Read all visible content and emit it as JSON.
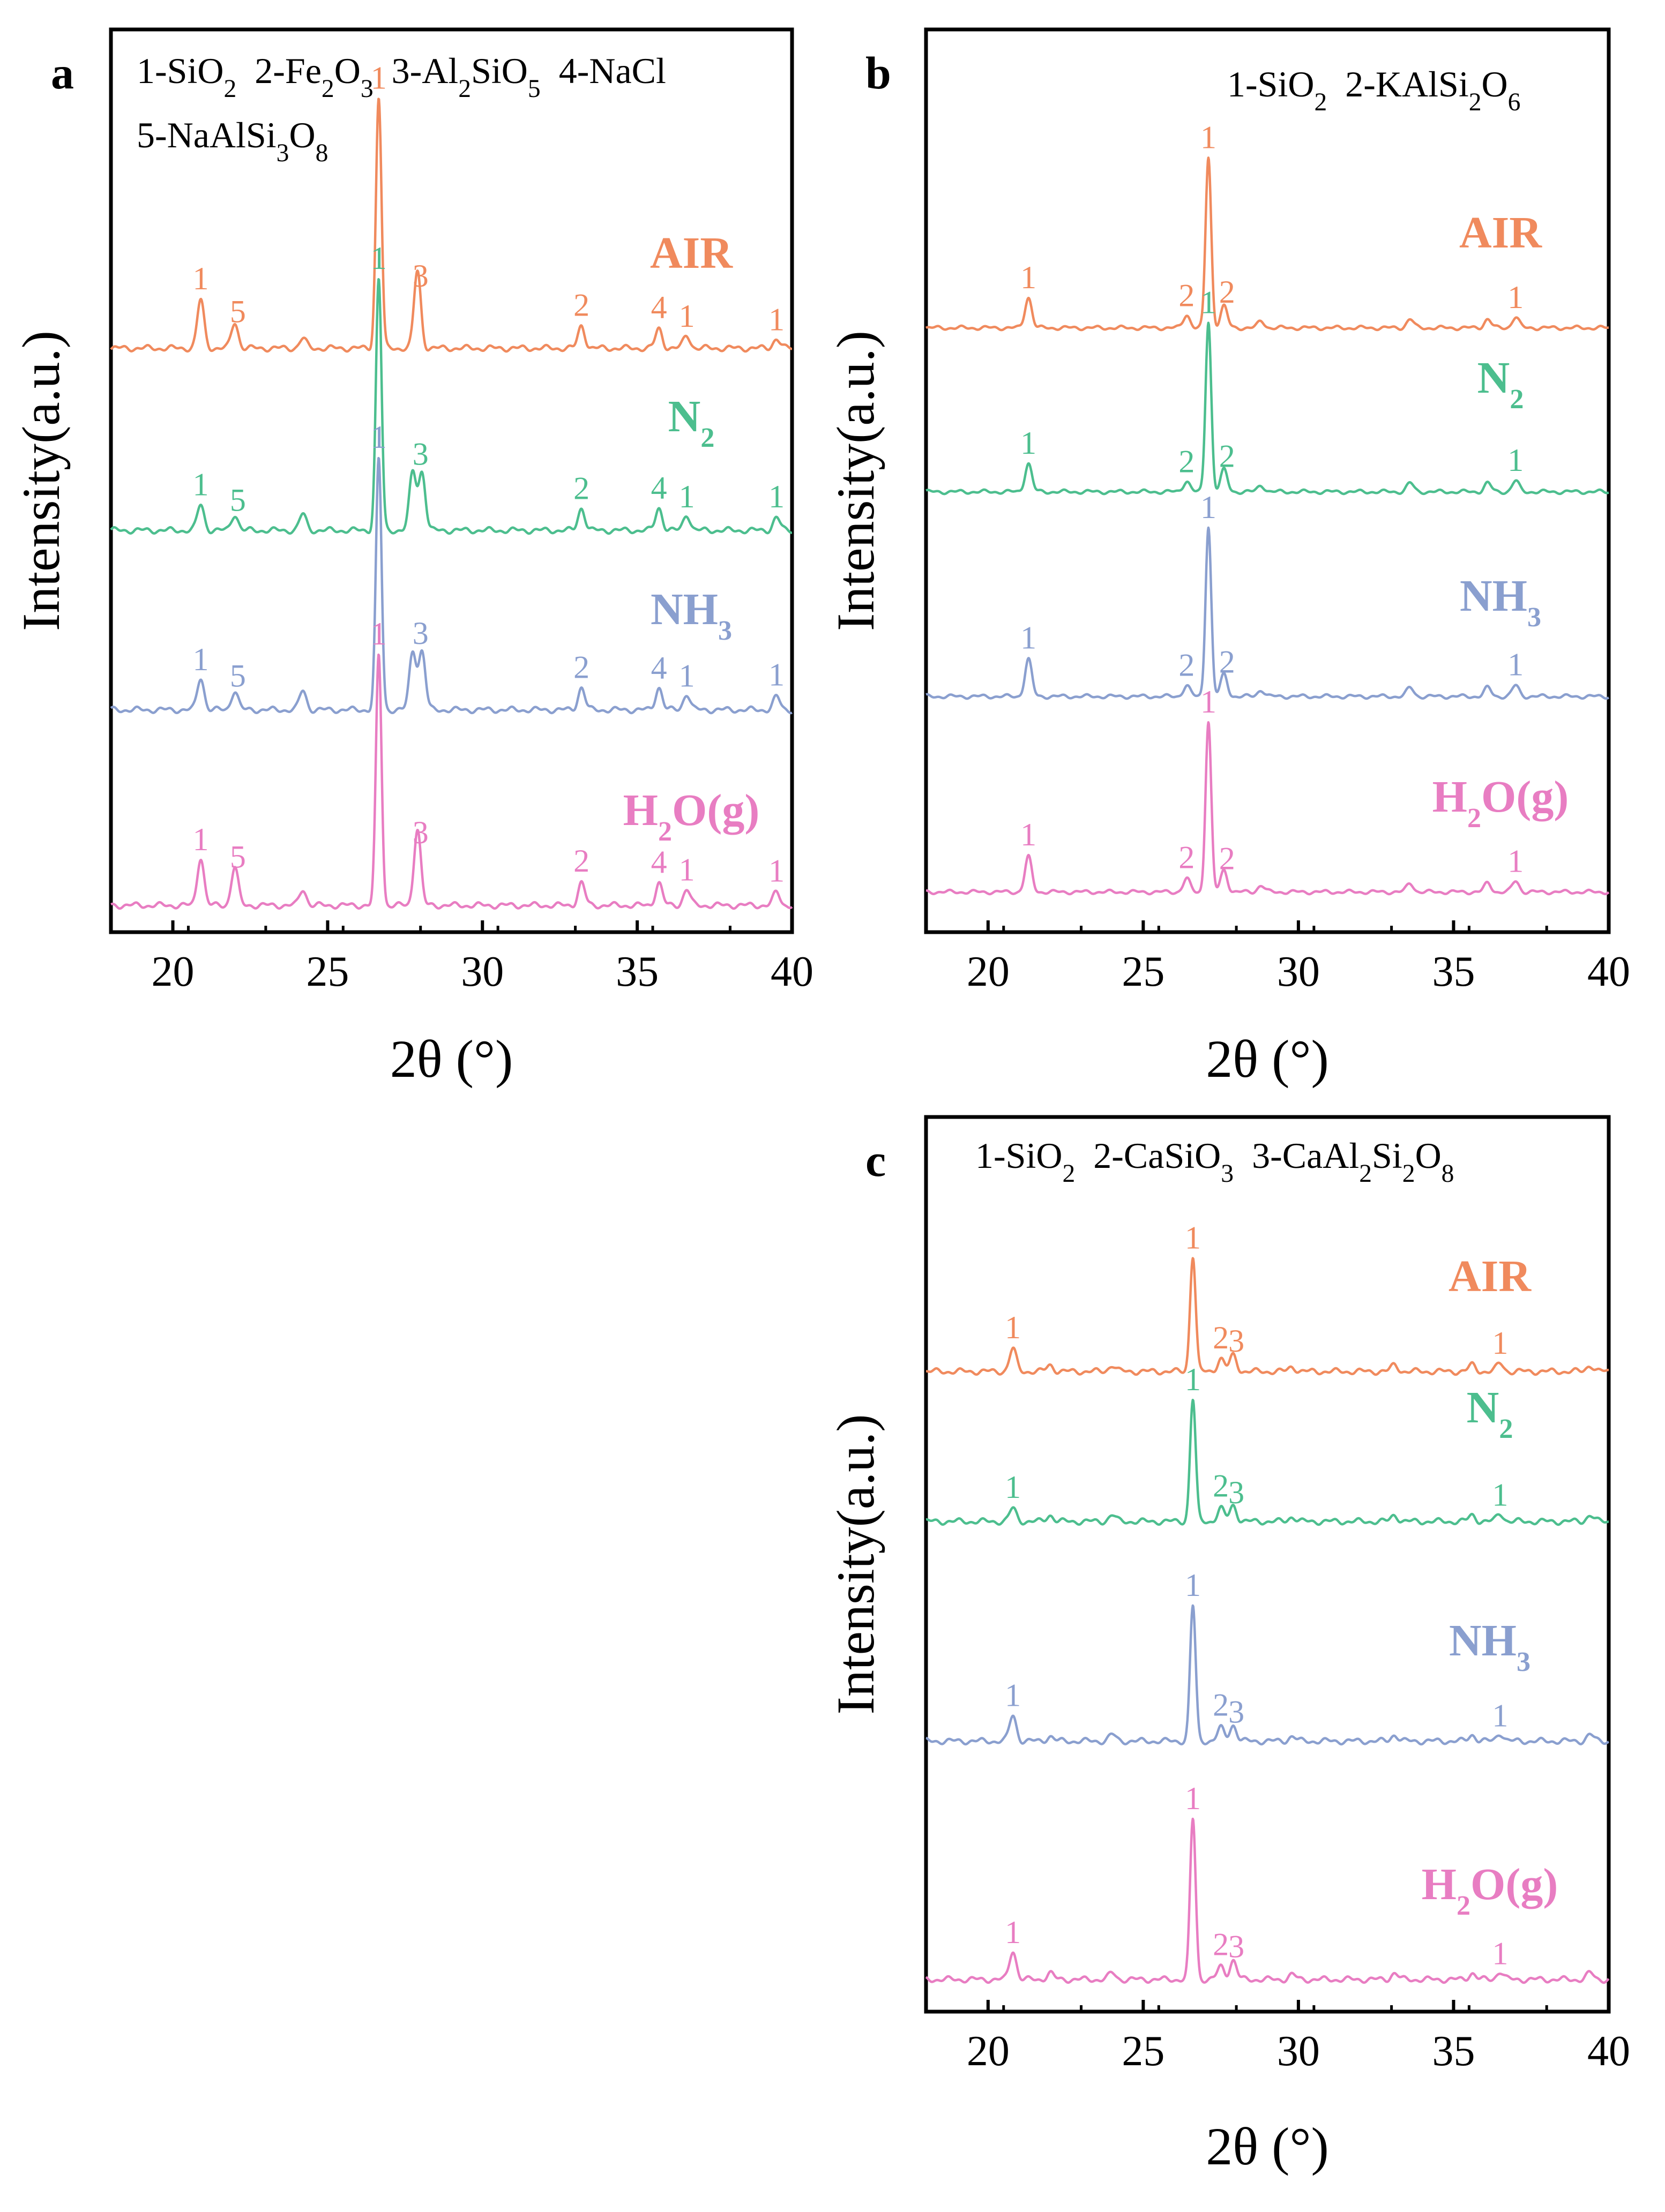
{
  "figure": {
    "x_axis_label": "2θ (°)",
    "y_axis_label": "Intensity(a.u.)",
    "xlim": [
      18,
      40
    ],
    "xticks": [
      20,
      25,
      30,
      35,
      40
    ],
    "series_names": [
      "AIR",
      "N2",
      "NH3",
      "H2O(g)"
    ],
    "series_colors": [
      "#F08A5D",
      "#4CBE8E",
      "#8A9FCF",
      "#E87DC2"
    ]
  },
  "panels": [
    {
      "id": "a",
      "letter": "a",
      "legend_lines": [
        [
          {
            "t": "1-SiO"
          },
          {
            "t": "2",
            "sub": true
          },
          {
            "t": "  2-Fe"
          },
          {
            "t": "2",
            "sub": true
          },
          {
            "t": "O"
          },
          {
            "t": "3",
            "sub": true
          },
          {
            "t": "  3-Al"
          },
          {
            "t": "2",
            "sub": true
          },
          {
            "t": "SiO"
          },
          {
            "t": "5",
            "sub": true
          },
          {
            "t": "  4-NaCl"
          }
        ],
        [
          {
            "t": "5-NaAlSi"
          },
          {
            "t": "3",
            "sub": true
          },
          {
            "t": "O"
          },
          {
            "t": "8",
            "sub": true
          }
        ]
      ]
    },
    {
      "id": "b",
      "letter": "b",
      "legend_lines": [
        [
          {
            "t": "1-SiO"
          },
          {
            "t": "2",
            "sub": true
          },
          {
            "t": "  2-KAlSi"
          },
          {
            "t": "2",
            "sub": true
          },
          {
            "t": "O"
          },
          {
            "t": "6",
            "sub": true
          }
        ]
      ]
    },
    {
      "id": "c",
      "letter": "c",
      "legend_lines": [
        [
          {
            "t": "1-SiO"
          },
          {
            "t": "2",
            "sub": true
          },
          {
            "t": "  2-CaSiO"
          },
          {
            "t": "3",
            "sub": true
          },
          {
            "t": "  3-CaAl"
          },
          {
            "t": "2",
            "sub": true
          },
          {
            "t": "Si"
          },
          {
            "t": "2",
            "sub": true
          },
          {
            "t": "O"
          },
          {
            "t": "8",
            "sub": true
          }
        ]
      ]
    }
  ],
  "chart_data": [
    {
      "panel": "a",
      "type": "line",
      "xlabel": "2θ (°)",
      "ylabel": "Intensity(a.u.)",
      "xlim": [
        18,
        40
      ],
      "phases": [
        "1-SiO2",
        "2-Fe2O3",
        "3-Al2SiO5",
        "4-NaCl",
        "5-NaAlSi3O8"
      ],
      "series": [
        {
          "name": "AIR",
          "color": "#F08A5D",
          "peaks": [
            [
              20.9,
              0.15
            ],
            [
              22.0,
              0.08
            ],
            [
              24.2,
              0.03
            ],
            [
              26.65,
              0.78
            ],
            [
              27.9,
              0.24
            ],
            [
              33.2,
              0.07
            ],
            [
              35.7,
              0.06
            ],
            [
              36.6,
              0.04
            ],
            [
              39.5,
              0.03
            ]
          ],
          "peak_labels": [
            {
              "x": 20.9,
              "text": "1"
            },
            {
              "x": 22.1,
              "text": "5"
            },
            {
              "x": 26.65,
              "text": "1"
            },
            {
              "x": 28.0,
              "text": "3"
            },
            {
              "x": 33.2,
              "text": "2"
            },
            {
              "x": 35.7,
              "text": "4"
            },
            {
              "x": 36.6,
              "text": "1"
            },
            {
              "x": 39.5,
              "text": "1"
            }
          ]
        },
        {
          "name": "N2",
          "color": "#4CBE8E",
          "peaks": [
            [
              20.9,
              0.08
            ],
            [
              22.0,
              0.05
            ],
            [
              24.2,
              0.05
            ],
            [
              26.65,
              0.78
            ],
            [
              27.75,
              0.18
            ],
            [
              28.05,
              0.18
            ],
            [
              33.2,
              0.07
            ],
            [
              35.7,
              0.07
            ],
            [
              36.6,
              0.05
            ],
            [
              39.5,
              0.04
            ]
          ],
          "peak_labels": [
            {
              "x": 20.9,
              "text": "1"
            },
            {
              "x": 22.1,
              "text": "5"
            },
            {
              "x": 26.65,
              "text": "1"
            },
            {
              "x": 28.0,
              "text": "3"
            },
            {
              "x": 33.2,
              "text": "2"
            },
            {
              "x": 35.7,
              "text": "4"
            },
            {
              "x": 36.6,
              "text": "1"
            },
            {
              "x": 39.5,
              "text": "1"
            }
          ]
        },
        {
          "name": "NH3",
          "color": "#8A9FCF",
          "peaks": [
            [
              20.9,
              0.1
            ],
            [
              22.0,
              0.06
            ],
            [
              24.2,
              0.06
            ],
            [
              26.65,
              0.78
            ],
            [
              27.75,
              0.18
            ],
            [
              28.05,
              0.18
            ],
            [
              33.2,
              0.07
            ],
            [
              35.7,
              0.07
            ],
            [
              36.6,
              0.05
            ],
            [
              39.5,
              0.04
            ]
          ],
          "peak_labels": [
            {
              "x": 20.9,
              "text": "1"
            },
            {
              "x": 22.1,
              "text": "5"
            },
            {
              "x": 26.65,
              "text": "1"
            },
            {
              "x": 28.0,
              "text": "3"
            },
            {
              "x": 33.2,
              "text": "2"
            },
            {
              "x": 35.7,
              "text": "4"
            },
            {
              "x": 36.6,
              "text": "1"
            },
            {
              "x": 39.5,
              "text": "1"
            }
          ]
        },
        {
          "name": "H2O(g)",
          "color": "#E87DC2",
          "peaks": [
            [
              20.9,
              0.15
            ],
            [
              22.0,
              0.12
            ],
            [
              24.2,
              0.05
            ],
            [
              26.65,
              0.78
            ],
            [
              27.9,
              0.24
            ],
            [
              33.2,
              0.07
            ],
            [
              35.7,
              0.07
            ],
            [
              36.6,
              0.05
            ],
            [
              39.5,
              0.04
            ]
          ],
          "peak_labels": [
            {
              "x": 20.9,
              "text": "1"
            },
            {
              "x": 22.1,
              "text": "5"
            },
            {
              "x": 26.65,
              "text": "1"
            },
            {
              "x": 28.0,
              "text": "3"
            },
            {
              "x": 33.2,
              "text": "2"
            },
            {
              "x": 35.7,
              "text": "4"
            },
            {
              "x": 36.6,
              "text": "1"
            },
            {
              "x": 39.5,
              "text": "1"
            }
          ]
        }
      ]
    },
    {
      "panel": "b",
      "type": "line",
      "xlabel": "2θ (°)",
      "ylabel": "Intensity(a.u.)",
      "xlim": [
        18,
        40
      ],
      "phases": [
        "1-SiO2",
        "2-KAlSi2O6"
      ],
      "series": [
        {
          "name": "AIR",
          "color": "#F08A5D",
          "peaks": [
            [
              21.3,
              0.14
            ],
            [
              26.4,
              0.06
            ],
            [
              27.1,
              0.78
            ],
            [
              27.6,
              0.1
            ],
            [
              28.8,
              0.03
            ],
            [
              33.6,
              0.04
            ],
            [
              36.1,
              0.04
            ],
            [
              37.0,
              0.05
            ]
          ],
          "peak_labels": [
            {
              "x": 21.3,
              "text": "1"
            },
            {
              "x": 26.4,
              "text": "2"
            },
            {
              "x": 27.1,
              "text": "1"
            },
            {
              "x": 27.7,
              "text": "2"
            },
            {
              "x": 37.0,
              "text": "1"
            }
          ]
        },
        {
          "name": "N2",
          "color": "#4CBE8E",
          "peaks": [
            [
              21.3,
              0.13
            ],
            [
              26.4,
              0.05
            ],
            [
              27.1,
              0.78
            ],
            [
              27.6,
              0.1
            ],
            [
              28.8,
              0.03
            ],
            [
              33.6,
              0.04
            ],
            [
              36.1,
              0.04
            ],
            [
              37.0,
              0.05
            ]
          ],
          "peak_labels": [
            {
              "x": 21.3,
              "text": "1"
            },
            {
              "x": 26.4,
              "text": "2"
            },
            {
              "x": 27.1,
              "text": "1"
            },
            {
              "x": 27.7,
              "text": "2"
            },
            {
              "x": 37.0,
              "text": "1"
            }
          ]
        },
        {
          "name": "NH3",
          "color": "#8A9FCF",
          "peaks": [
            [
              21.3,
              0.17
            ],
            [
              26.4,
              0.05
            ],
            [
              27.1,
              0.78
            ],
            [
              27.6,
              0.1
            ],
            [
              28.8,
              0.03
            ],
            [
              33.6,
              0.04
            ],
            [
              36.1,
              0.04
            ],
            [
              37.0,
              0.05
            ]
          ],
          "peak_labels": [
            {
              "x": 21.3,
              "text": "1"
            },
            {
              "x": 26.4,
              "text": "2"
            },
            {
              "x": 27.1,
              "text": "1"
            },
            {
              "x": 27.7,
              "text": "2"
            },
            {
              "x": 37.0,
              "text": "1"
            }
          ]
        },
        {
          "name": "H2O(g)",
          "color": "#E87DC2",
          "peaks": [
            [
              21.3,
              0.16
            ],
            [
              26.4,
              0.06
            ],
            [
              27.1,
              0.78
            ],
            [
              27.6,
              0.1
            ],
            [
              28.8,
              0.03
            ],
            [
              33.6,
              0.04
            ],
            [
              36.1,
              0.04
            ],
            [
              37.0,
              0.05
            ]
          ],
          "peak_labels": [
            {
              "x": 21.3,
              "text": "1"
            },
            {
              "x": 26.4,
              "text": "2"
            },
            {
              "x": 27.1,
              "text": "1"
            },
            {
              "x": 27.7,
              "text": "2"
            },
            {
              "x": 37.0,
              "text": "1"
            }
          ]
        }
      ]
    },
    {
      "panel": "c",
      "type": "line",
      "xlabel": "2θ (°)",
      "ylabel": "Intensity(a.u.)",
      "xlim": [
        18,
        40
      ],
      "phases": [
        "1-SiO2",
        "2-CaSiO3",
        "3-CaAl2Si2O8"
      ],
      "series": [
        {
          "name": "AIR",
          "color": "#F08A5D",
          "peaks": [
            [
              20.8,
              0.07
            ],
            [
              22.0,
              0.02
            ],
            [
              24.0,
              0.02
            ],
            [
              26.6,
              0.36
            ],
            [
              27.5,
              0.04
            ],
            [
              27.9,
              0.05
            ],
            [
              29.8,
              0.015
            ],
            [
              33.1,
              0.02
            ],
            [
              35.6,
              0.02
            ],
            [
              36.5,
              0.025
            ],
            [
              39.4,
              0.02
            ]
          ],
          "peak_labels": [
            {
              "x": 20.8,
              "text": "1"
            },
            {
              "x": 26.6,
              "text": "1"
            },
            {
              "x": 27.5,
              "text": "2"
            },
            {
              "x": 28.0,
              "text": "3"
            },
            {
              "x": 36.5,
              "text": "1"
            }
          ]
        },
        {
          "name": "N2",
          "color": "#4CBE8E",
          "peaks": [
            [
              20.8,
              0.04
            ],
            [
              22.0,
              0.02
            ],
            [
              24.0,
              0.02
            ],
            [
              26.6,
              0.38
            ],
            [
              27.5,
              0.04
            ],
            [
              27.9,
              0.05
            ],
            [
              29.8,
              0.015
            ],
            [
              33.1,
              0.02
            ],
            [
              35.6,
              0.02
            ],
            [
              36.5,
              0.025
            ],
            [
              39.4,
              0.02
            ]
          ],
          "peak_labels": [
            {
              "x": 20.8,
              "text": "1"
            },
            {
              "x": 26.6,
              "text": "1"
            },
            {
              "x": 27.5,
              "text": "2"
            },
            {
              "x": 28.0,
              "text": "3"
            },
            {
              "x": 36.5,
              "text": "1"
            }
          ]
        },
        {
          "name": "NH3",
          "color": "#8A9FCF",
          "peaks": [
            [
              20.8,
              0.08
            ],
            [
              22.0,
              0.015
            ],
            [
              24.0,
              0.02
            ],
            [
              26.6,
              0.42
            ],
            [
              27.5,
              0.04
            ],
            [
              27.9,
              0.05
            ],
            [
              29.8,
              0.015
            ],
            [
              33.1,
              0.02
            ],
            [
              35.6,
              0.02
            ],
            [
              36.5,
              0.025
            ],
            [
              39.4,
              0.02
            ]
          ],
          "peak_labels": [
            {
              "x": 20.8,
              "text": "1"
            },
            {
              "x": 26.6,
              "text": "1"
            },
            {
              "x": 27.5,
              "text": "2"
            },
            {
              "x": 28.0,
              "text": "3"
            },
            {
              "x": 36.5,
              "text": "1"
            }
          ]
        },
        {
          "name": "H2O(g)",
          "color": "#E87DC2",
          "peaks": [
            [
              20.8,
              0.09
            ],
            [
              22.0,
              0.02
            ],
            [
              24.0,
              0.02
            ],
            [
              26.6,
              0.5
            ],
            [
              27.5,
              0.04
            ],
            [
              27.9,
              0.06
            ],
            [
              29.8,
              0.015
            ],
            [
              33.1,
              0.02
            ],
            [
              35.6,
              0.02
            ],
            [
              36.5,
              0.025
            ],
            [
              39.4,
              0.02
            ]
          ],
          "peak_labels": [
            {
              "x": 20.8,
              "text": "1"
            },
            {
              "x": 26.6,
              "text": "1"
            },
            {
              "x": 27.5,
              "text": "2"
            },
            {
              "x": 28.0,
              "text": "3"
            },
            {
              "x": 36.5,
              "text": "1"
            }
          ]
        }
      ]
    }
  ]
}
